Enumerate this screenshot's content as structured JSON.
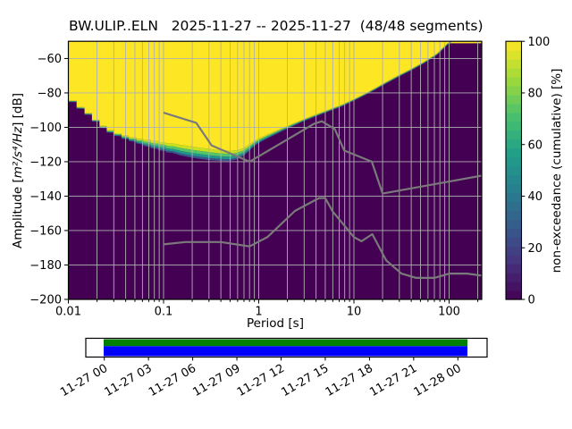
{
  "station": "BW.ULIP..ELN",
  "date_start": "2025-11-27",
  "date_end": "2025-11-27",
  "segments": "48/48",
  "chart_data": {
    "type": "heatmap",
    "title": "BW.ULIP..ELN   2025-11-27 -- 2025-11-27  (48/48 segments)",
    "xlabel": "Period [s]",
    "ylabel_pre": "Amplitude [",
    "ylabel_math": "m²/s⁴/Hz",
    "ylabel_post": "] [dB]",
    "xlim": [
      0.01,
      220
    ],
    "ylim": [
      -200,
      -50
    ],
    "x_scale": "log",
    "grid": true,
    "xticks": {
      "values": [
        0.01,
        0.1,
        1,
        10,
        100
      ],
      "labels": [
        "0.01",
        "0.1",
        "1",
        "10",
        "100"
      ]
    },
    "yticks": {
      "values": [
        -60,
        -80,
        -100,
        -120,
        -140,
        -160,
        -180,
        -200
      ],
      "labels": [
        "−60",
        "−80",
        "−100",
        "−120",
        "−140",
        "−160",
        "−180",
        "−200"
      ]
    },
    "colors": {
      "background": "#440154",
      "top": "#fde725",
      "grid": "#b0b0b0",
      "frame": "#000000"
    },
    "band_colors": [
      "#c7e11f",
      "#54c568",
      "#1f978b",
      "#3a548c"
    ],
    "band_fractions": [
      0,
      0.3,
      0.58,
      0.82,
      1
    ],
    "mode_boundary": [
      [
        0.01,
        -84.5
      ],
      [
        0.0122,
        -84.5
      ],
      [
        0.0122,
        -88.3
      ],
      [
        0.0148,
        -88.3
      ],
      [
        0.0148,
        -91.8
      ],
      [
        0.0177,
        -91.8
      ],
      [
        0.0177,
        -95.6
      ],
      [
        0.0212,
        -95.6
      ],
      [
        0.0212,
        -99.2
      ],
      [
        0.0253,
        -99.2
      ],
      [
        0.0253,
        -101.7
      ],
      [
        0.0302,
        -101.7
      ],
      [
        0.0302,
        -103.4
      ],
      [
        0.0361,
        -103.4
      ],
      [
        0.0361,
        -104.8
      ],
      [
        0.0431,
        -104.8
      ],
      [
        0.0431,
        -105.8
      ],
      [
        0.0515,
        -105.8
      ],
      [
        0.0515,
        -106.7
      ],
      [
        0.0615,
        -106.7
      ],
      [
        0.0615,
        -107.4
      ],
      [
        0.0734,
        -107.4
      ],
      [
        0.0734,
        -108.0
      ],
      [
        0.0877,
        -108.0
      ],
      [
        0.0877,
        -108.6
      ],
      [
        0.105,
        -108.6
      ],
      [
        0.105,
        -109.3
      ],
      [
        0.125,
        -109.3
      ],
      [
        0.15,
        -110.2
      ],
      [
        0.19,
        -111.0
      ],
      [
        0.24,
        -111.8
      ],
      [
        0.3,
        -112.5
      ],
      [
        0.38,
        -113.2
      ],
      [
        0.48,
        -113.6
      ],
      [
        0.58,
        -113.4
      ],
      [
        0.68,
        -112.3
      ],
      [
        0.78,
        -110.3
      ],
      [
        0.9,
        -107.8
      ],
      [
        1.05,
        -105.8
      ],
      [
        1.3,
        -103.6
      ],
      [
        1.7,
        -100.8
      ],
      [
        2.2,
        -98.2
      ],
      [
        3.0,
        -95.2
      ],
      [
        4.0,
        -92.5
      ],
      [
        5.5,
        -89.6
      ],
      [
        7.5,
        -86.8
      ],
      [
        10,
        -83.6
      ],
      [
        13,
        -80.5
      ],
      [
        17,
        -77.0
      ],
      [
        22,
        -73.5
      ],
      [
        30,
        -69.5
      ],
      [
        40,
        -66.0
      ],
      [
        55,
        -61.8
      ],
      [
        75,
        -57.0
      ],
      [
        101,
        -50.0
      ],
      [
        220,
        -40.0
      ]
    ],
    "spread_db": [
      [
        0.01,
        0.8
      ],
      [
        0.016,
        1.0
      ],
      [
        0.03,
        1.5
      ],
      [
        0.05,
        2.5
      ],
      [
        0.08,
        4.5
      ],
      [
        0.12,
        5.5
      ],
      [
        0.18,
        6.5
      ],
      [
        0.3,
        6.5
      ],
      [
        0.5,
        6.0
      ],
      [
        0.7,
        4.5
      ],
      [
        0.9,
        3.0
      ],
      [
        1.5,
        2.0
      ],
      [
        3.0,
        1.2
      ],
      [
        10,
        1.0
      ],
      [
        100,
        1.0
      ],
      [
        220,
        1.0
      ]
    ],
    "noise_models": {
      "color": "#7a7a7a",
      "high": [
        [
          0.1,
          -91.5
        ],
        [
          0.22,
          -97.4
        ],
        [
          0.32,
          -110.5
        ],
        [
          0.8,
          -120.0
        ],
        [
          3.8,
          -98.0
        ],
        [
          4.6,
          -96.5
        ],
        [
          6.3,
          -101.0
        ],
        [
          7.9,
          -113.5
        ],
        [
          15.4,
          -120.0
        ],
        [
          20.0,
          -138.5
        ],
        [
          354.8,
          -126.0
        ]
      ],
      "low": [
        [
          0.1,
          -168.0
        ],
        [
          0.17,
          -166.7
        ],
        [
          0.4,
          -166.7
        ],
        [
          0.8,
          -169.2
        ],
        [
          1.24,
          -163.7
        ],
        [
          2.4,
          -148.6
        ],
        [
          4.3,
          -141.1
        ],
        [
          5.0,
          -141.1
        ],
        [
          6.0,
          -149.0
        ],
        [
          10.0,
          -163.8
        ],
        [
          12.0,
          -166.2
        ],
        [
          15.6,
          -162.1
        ],
        [
          21.9,
          -177.5
        ],
        [
          31.6,
          -185.0
        ],
        [
          45.0,
          -187.5
        ],
        [
          70.0,
          -187.5
        ],
        [
          101.0,
          -185.0
        ],
        [
          154.0,
          -185.0
        ],
        [
          328.0,
          -187.5
        ]
      ]
    },
    "colorbar": {
      "label": "non-exceedance (cumulative) [%]",
      "ticks": [
        0,
        20,
        40,
        60,
        80,
        100
      ],
      "steps": 29,
      "cmap": [
        "#440154",
        "#46327e",
        "#365c8d",
        "#277f8e",
        "#1fa187",
        "#4ac16d",
        "#a0da39",
        "#fde725"
      ]
    },
    "timeline": {
      "labels": [
        "11-27 00",
        "11-27 03",
        "11-27 06",
        "11-27 09",
        "11-27 12",
        "11-27 15",
        "11-27 18",
        "11-27 21",
        "11-28 00"
      ],
      "data_color": "#008000",
      "segment_color": "#0000ff"
    }
  }
}
